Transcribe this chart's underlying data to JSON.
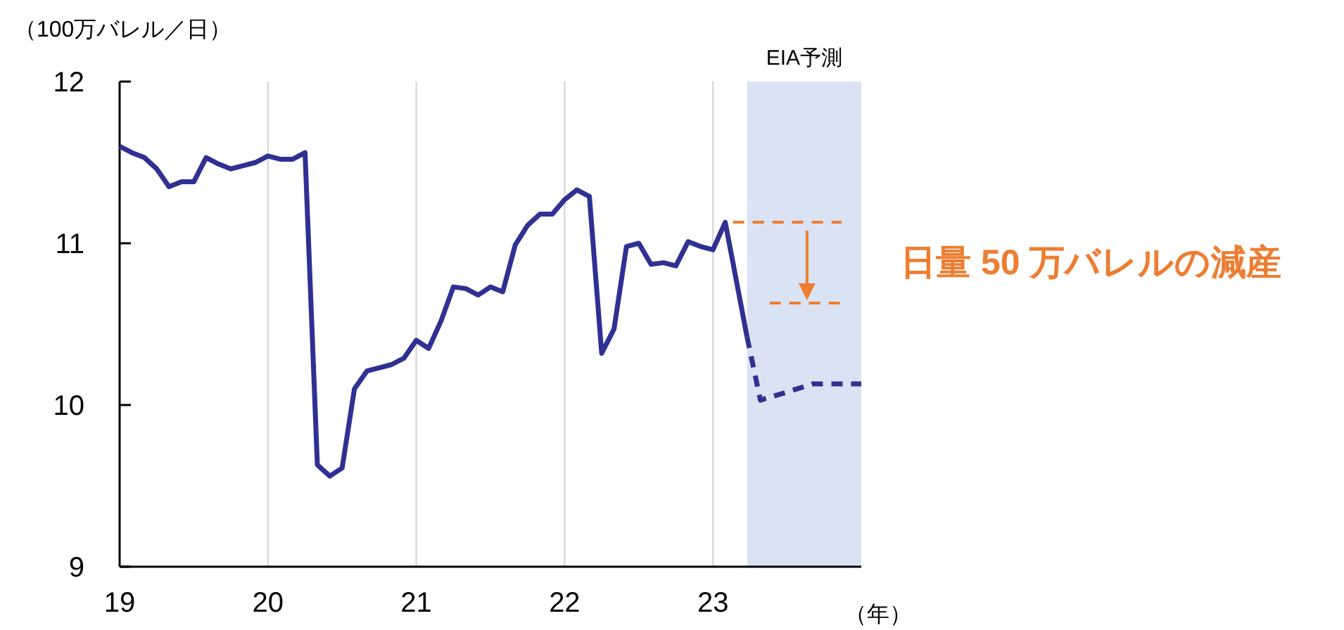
{
  "chart_data": {
    "type": "line",
    "ylabel": "（100万バレル／日）",
    "xlabel": "（年）",
    "xlim": [
      2019,
      2024
    ],
    "xticks": [
      {
        "value": 2019,
        "label": "19"
      },
      {
        "value": 2020,
        "label": "20"
      },
      {
        "value": 2021,
        "label": "21"
      },
      {
        "value": 2022,
        "label": "22"
      },
      {
        "value": 2023,
        "label": "23"
      }
    ],
    "ylim": [
      9,
      12
    ],
    "yticks": [
      9,
      10,
      11,
      12
    ],
    "grid": "x",
    "series": [
      {
        "color": "#2e3192",
        "line_style": "solid",
        "x": [
          2019,
          2019.083,
          2019.167,
          2019.25,
          2019.333,
          2019.417,
          2019.5,
          2019.583,
          2019.667,
          2019.75,
          2019.833,
          2019.917,
          2020,
          2020.083,
          2020.167,
          2020.25,
          2020.333,
          2020.417,
          2020.5,
          2020.583,
          2020.667,
          2020.75,
          2020.833,
          2020.917,
          2021,
          2021.083,
          2021.167,
          2021.25,
          2021.333,
          2021.417,
          2021.5,
          2021.583,
          2021.667,
          2021.75,
          2021.833,
          2021.917,
          2022,
          2022.083,
          2022.167,
          2022.25,
          2022.333,
          2022.417,
          2022.5,
          2022.583,
          2022.667,
          2022.75,
          2022.833,
          2022.917,
          2023,
          2023.083,
          2023.23
        ],
        "values": [
          11.6,
          11.56,
          11.53,
          11.46,
          11.35,
          11.38,
          11.38,
          11.53,
          11.49,
          11.46,
          11.48,
          11.5,
          11.54,
          11.52,
          11.52,
          11.56,
          9.63,
          9.56,
          9.61,
          10.1,
          10.21,
          10.23,
          10.25,
          10.29,
          10.4,
          10.35,
          10.52,
          10.73,
          10.72,
          10.68,
          10.73,
          10.7,
          10.99,
          11.11,
          11.18,
          11.18,
          11.27,
          11.33,
          11.29,
          10.32,
          10.47,
          10.98,
          11.0,
          10.87,
          10.88,
          10.86,
          11.01,
          10.98,
          10.96,
          11.13,
          10.42
        ]
      },
      {
        "color": "#2e3192",
        "line_style": "dashed",
        "x": [
          2023.23,
          2023.32,
          2023.5,
          2023.67,
          2024
        ],
        "values": [
          10.42,
          10.03,
          10.08,
          10.13,
          10.13
        ]
      }
    ],
    "bands": [
      {
        "axis": "x",
        "from": 2023.23,
        "to": 2024,
        "label": "EIA予測",
        "color": "#dae3f3"
      }
    ],
    "ref_lines": [
      {
        "axis": "y",
        "value": 11.13,
        "color": "#ed7d31",
        "line_style": "dashed"
      },
      {
        "axis": "y",
        "value": 10.63,
        "color": "#ed7d31",
        "line_style": "dashed"
      }
    ],
    "annotations": [
      "日量 50 万バレルの減産"
    ]
  }
}
